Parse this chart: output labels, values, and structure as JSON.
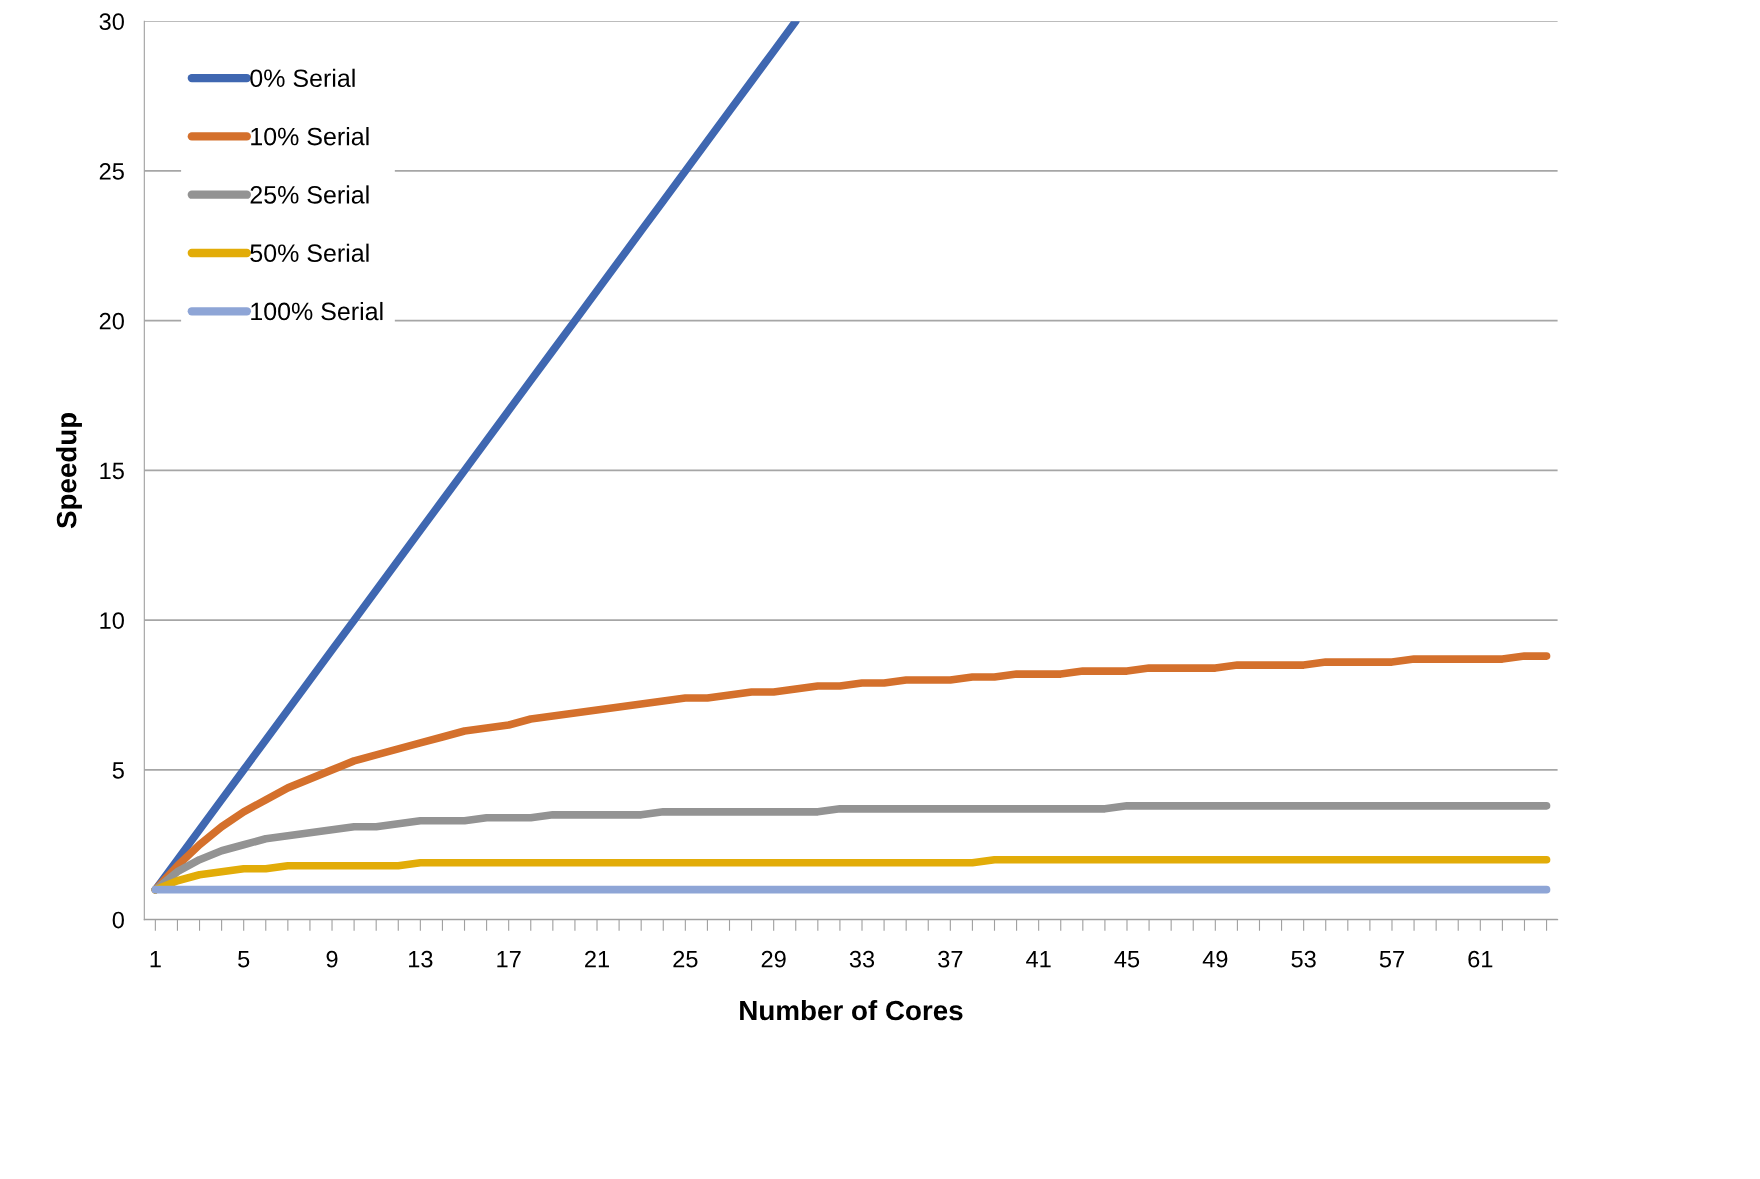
{
  "chart_data": {
    "type": "line",
    "xlabel": "Number of Cores",
    "ylabel": "Speedup",
    "categories": [
      "1",
      null,
      null,
      null,
      "5",
      null,
      null,
      null,
      "9",
      null,
      null,
      null,
      "13",
      null,
      null,
      null,
      "17",
      null,
      null,
      null,
      "21",
      null,
      null,
      null,
      "25",
      null,
      null,
      null,
      "29",
      null,
      null,
      null,
      "33",
      null,
      null,
      null,
      "37",
      null,
      null,
      null,
      "41",
      null,
      null,
      null,
      "45",
      null,
      null,
      null,
      "49",
      null,
      null,
      null,
      "53",
      null,
      null,
      null,
      "57",
      null,
      null,
      null,
      "61",
      null,
      null,
      null
    ],
    "series": [
      {
        "name": "0% Serial",
        "color": "#3f67b1",
        "values": [
          1,
          2,
          3,
          4,
          5,
          6,
          7,
          8,
          9,
          10,
          11,
          12,
          13,
          14,
          15,
          16,
          17,
          18,
          19,
          20,
          21,
          22,
          23,
          24,
          25,
          26,
          27,
          28,
          29,
          30,
          null,
          null,
          null,
          null,
          null,
          null,
          null,
          null,
          null,
          null,
          null,
          null,
          null,
          null,
          null,
          null,
          null,
          null,
          null,
          null,
          null,
          null,
          null,
          null,
          null,
          null,
          null,
          null,
          null,
          null,
          null,
          null,
          null,
          null
        ]
      },
      {
        "name": "10% Serial",
        "color": "#d4702c",
        "values": [
          1.0,
          1.8,
          2.5,
          3.1,
          3.6,
          4.0,
          4.4,
          4.7,
          5.0,
          5.3,
          5.5,
          5.7,
          5.9,
          6.1,
          6.3,
          6.4,
          6.5,
          6.7,
          6.8,
          6.9,
          7.0,
          7.1,
          7.2,
          7.3,
          7.4,
          7.4,
          7.5,
          7.6,
          7.6,
          7.7,
          7.8,
          7.8,
          7.9,
          7.9,
          8.0,
          8.0,
          8.0,
          8.1,
          8.1,
          8.2,
          8.2,
          8.2,
          8.3,
          8.3,
          8.3,
          8.4,
          8.4,
          8.4,
          8.4,
          8.5,
          8.5,
          8.5,
          8.5,
          8.6,
          8.6,
          8.6,
          8.6,
          8.7,
          8.7,
          8.7,
          8.7,
          8.7,
          8.8,
          8.8
        ]
      },
      {
        "name": "25% Serial",
        "color": "#939393",
        "values": [
          1.0,
          1.6,
          2.0,
          2.3,
          2.5,
          2.7,
          2.8,
          2.9,
          3.0,
          3.1,
          3.1,
          3.2,
          3.3,
          3.3,
          3.3,
          3.4,
          3.4,
          3.4,
          3.5,
          3.5,
          3.5,
          3.5,
          3.5,
          3.6,
          3.6,
          3.6,
          3.6,
          3.6,
          3.6,
          3.6,
          3.6,
          3.7,
          3.7,
          3.7,
          3.7,
          3.7,
          3.7,
          3.7,
          3.7,
          3.7,
          3.7,
          3.7,
          3.7,
          3.7,
          3.8,
          3.8,
          3.8,
          3.8,
          3.8,
          3.8,
          3.8,
          3.8,
          3.8,
          3.8,
          3.8,
          3.8,
          3.8,
          3.8,
          3.8,
          3.8,
          3.8,
          3.8,
          3.8,
          3.8
        ]
      },
      {
        "name": "50% Serial",
        "color": "#e2ac08",
        "values": [
          1.0,
          1.3,
          1.5,
          1.6,
          1.7,
          1.7,
          1.8,
          1.8,
          1.8,
          1.8,
          1.8,
          1.8,
          1.9,
          1.9,
          1.9,
          1.9,
          1.9,
          1.9,
          1.9,
          1.9,
          1.9,
          1.9,
          1.9,
          1.9,
          1.9,
          1.9,
          1.9,
          1.9,
          1.9,
          1.9,
          1.9,
          1.9,
          1.9,
          1.9,
          1.9,
          1.9,
          1.9,
          1.9,
          2.0,
          2.0,
          2.0,
          2.0,
          2.0,
          2.0,
          2.0,
          2.0,
          2.0,
          2.0,
          2.0,
          2.0,
          2.0,
          2.0,
          2.0,
          2.0,
          2.0,
          2.0,
          2.0,
          2.0,
          2.0,
          2.0,
          2.0,
          2.0,
          2.0,
          2.0
        ]
      },
      {
        "name": "100% Serial",
        "color": "#8ea5d6",
        "values": [
          1,
          1,
          1,
          1,
          1,
          1,
          1,
          1,
          1,
          1,
          1,
          1,
          1,
          1,
          1,
          1,
          1,
          1,
          1,
          1,
          1,
          1,
          1,
          1,
          1,
          1,
          1,
          1,
          1,
          1,
          1,
          1,
          1,
          1,
          1,
          1,
          1,
          1,
          1,
          1,
          1,
          1,
          1,
          1,
          1,
          1,
          1,
          1,
          1,
          1,
          1,
          1,
          1,
          1,
          1,
          1,
          1,
          1,
          1,
          1,
          1,
          1,
          1,
          1
        ]
      }
    ],
    "ylim": [
      0,
      30
    ],
    "yticks": [
      0,
      5,
      10,
      15,
      20,
      25,
      30
    ],
    "grid": "y",
    "legend": "top left",
    "marker": "none",
    "line_style": "solid"
  }
}
